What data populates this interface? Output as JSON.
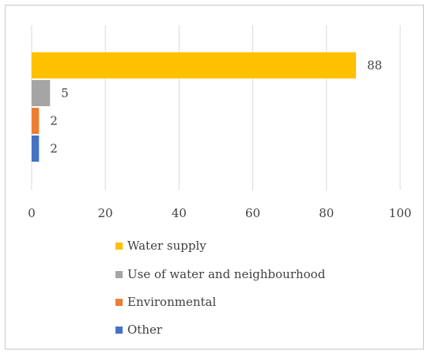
{
  "chart_data": {
    "type": "bar",
    "orientation": "horizontal",
    "categories": [
      "Water supply",
      "Use of water and neighbourhood",
      "Environmental",
      "Other"
    ],
    "values": [
      88,
      5,
      2,
      2
    ],
    "colors": [
      "#FFC000",
      "#A5A5A5",
      "#ED7D31",
      "#4472C4"
    ],
    "xlim": [
      0,
      100
    ],
    "xticks": [
      "0",
      "20",
      "40",
      "60",
      "80",
      "100"
    ],
    "grid": true,
    "legend_position": "bottom",
    "data_labels": [
      "88",
      "5",
      "2",
      "2"
    ]
  }
}
